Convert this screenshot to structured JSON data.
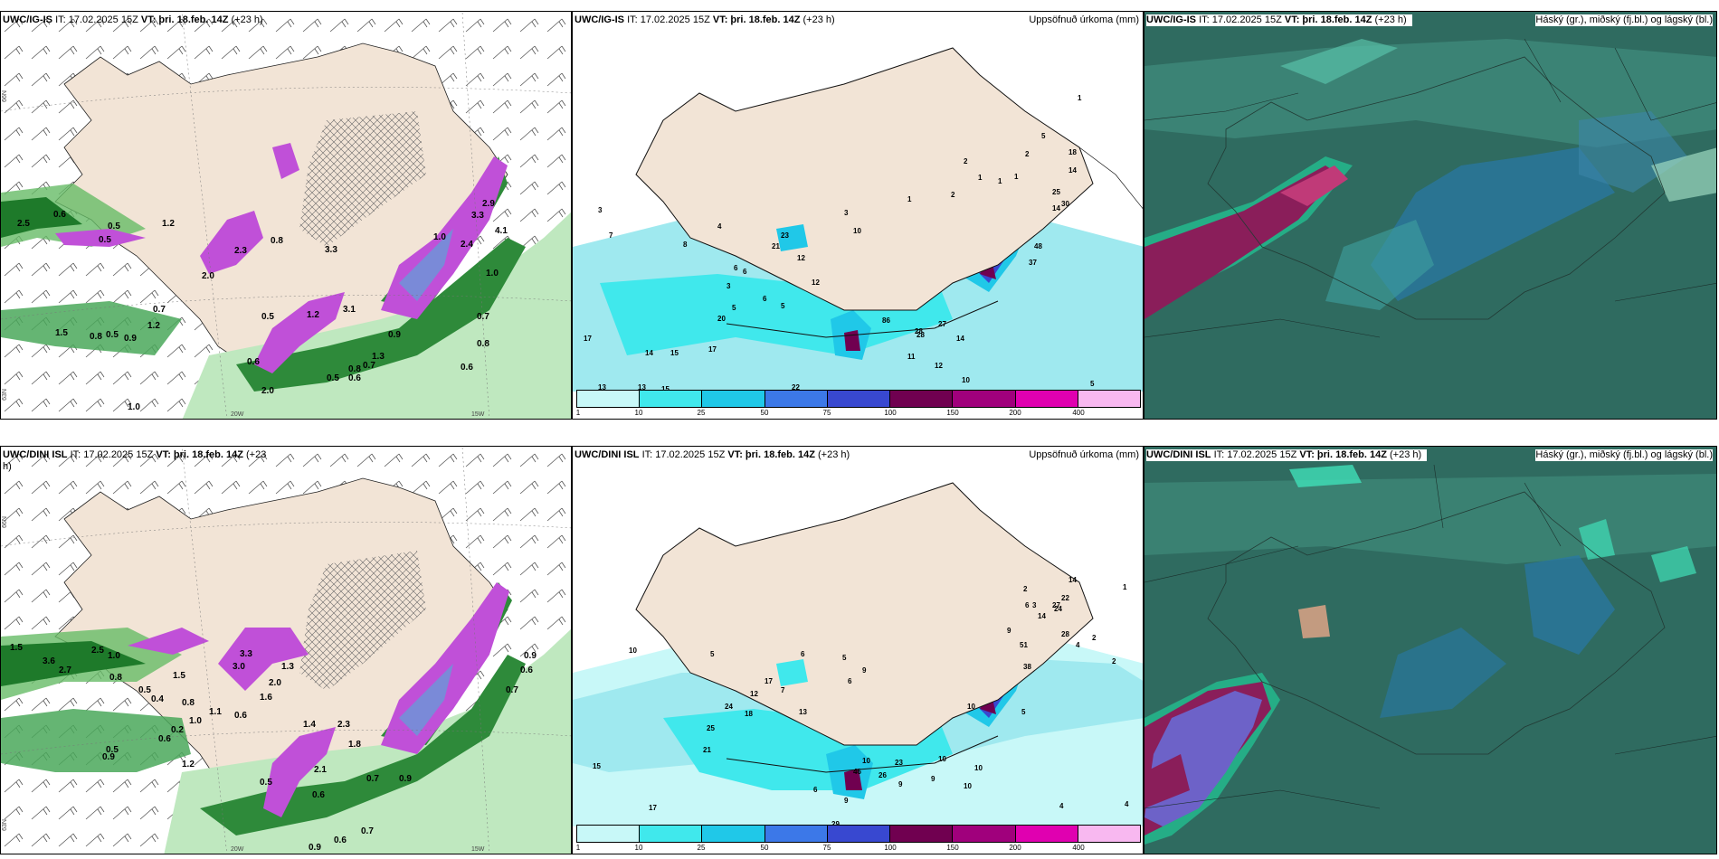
{
  "common": {
    "issue": "IT: 17.02.2025 15Z",
    "valid_label": "VT:",
    "valid": "þri. 18.feb. 14Z",
    "lead": "(+23 h)"
  },
  "panels": {
    "top_left": {
      "model": "UWC/IG-IS"
    },
    "top_mid": {
      "model": "UWC/IG-IS",
      "right": "Uppsöfnuð úrkoma (mm)"
    },
    "top_right": {
      "model": "UWC/IG-IS",
      "right": "Háský (gr.), miðský (fj.bl.) og lágský (bl.)"
    },
    "bot_left": {
      "model": "UWC/DINI ISL"
    },
    "bot_mid": {
      "model": "UWC/DINI ISL",
      "right": "Uppsöfnuð úrkoma (mm)"
    },
    "bot_right": {
      "model": "UWC/DINI ISL",
      "right": "Háský (gr.), miðský (fj.bl.) og lágský (bl.)"
    }
  },
  "axes": {
    "lat66": "66N",
    "lat64": "64N",
    "lat63": "63N",
    "lon20": "20W",
    "lon15": "15W"
  },
  "colorbar": {
    "labels": [
      "1",
      "10",
      "25",
      "50",
      "75",
      "100",
      "150",
      "200",
      "400"
    ],
    "colors": [
      "#c8f8f8",
      "#40e8ec",
      "#20c8e8",
      "#3c78e8",
      "#3848d0",
      "#700050",
      "#a0007c",
      "#e000b0",
      "#f8b8f0"
    ]
  },
  "top_left_labels": [
    "2.5",
    "0.6",
    "0.5",
    "1.2",
    "0.5",
    "2.0",
    "2.3",
    "0.8",
    "3.3",
    "1.0",
    "1.2",
    "3.1",
    "1.5",
    "0.7",
    "0.5",
    "0.9",
    "1.2",
    "0.8",
    "0.6",
    "2.0",
    "0.5",
    "1.3",
    "0.9",
    "0.6",
    "0.7",
    "0.8",
    "1.0",
    "0.8",
    "0.7",
    "0.6",
    "0.5",
    "1.0",
    "2.9",
    "4.1",
    "3.3",
    "2.4"
  ],
  "top_mid_labels": [
    "1",
    "5",
    "18",
    "2",
    "14",
    "2",
    "1",
    "1",
    "1",
    "2",
    "25",
    "30",
    "1",
    "3",
    "7",
    "14",
    "23",
    "10",
    "3",
    "4",
    "8",
    "21",
    "12",
    "37",
    "48",
    "6",
    "28",
    "12",
    "3",
    "6",
    "6",
    "5",
    "5",
    "20",
    "86",
    "27",
    "28",
    "14",
    "12",
    "11",
    "17",
    "14",
    "15",
    "17",
    "13",
    "13",
    "15",
    "22",
    "10",
    "5"
  ],
  "bot_left_labels": [
    "1.5",
    "3.6",
    "2.7",
    "2.5",
    "1.0",
    "0.8",
    "0.5",
    "0.4",
    "0.2",
    "1.0",
    "0.6",
    "0.5",
    "0.9",
    "0.7",
    "0.6",
    "0.5",
    "1.2",
    "2.1",
    "1.8",
    "0.9",
    "0.6",
    "0.7",
    "1.3",
    "3.3",
    "3.0",
    "2.0",
    "1.6",
    "1.5",
    "0.8",
    "0.6",
    "1.1",
    "2.3",
    "1.4"
  ],
  "bot_mid_labels": [
    "1",
    "14",
    "2",
    "22",
    "6",
    "24",
    "14",
    "27",
    "3",
    "28",
    "9",
    "51",
    "4",
    "38",
    "2",
    "2",
    "10",
    "5",
    "6",
    "5",
    "10",
    "17",
    "12",
    "13",
    "7",
    "9",
    "6",
    "10",
    "5",
    "9",
    "18",
    "24",
    "25",
    "21",
    "15",
    "17",
    "46",
    "26",
    "23",
    "6",
    "9",
    "9",
    "10",
    "10",
    "4",
    "4",
    "29",
    "10"
  ]
}
